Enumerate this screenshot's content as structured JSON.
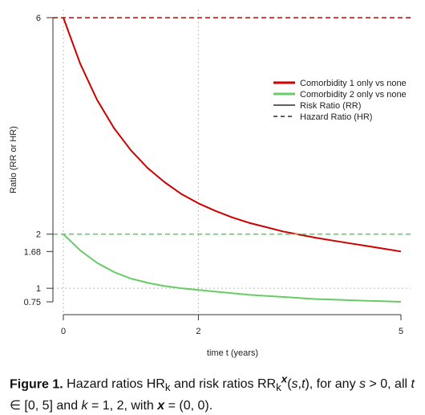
{
  "chart_data": {
    "type": "line",
    "title": "",
    "xlabel": "time t (years)",
    "ylabel": "Ratio (RR or HR)",
    "xlim": [
      0,
      5
    ],
    "ylim": [
      0.75,
      6
    ],
    "xticks": [
      0,
      2,
      5
    ],
    "xtick_labels": [
      "0",
      "2",
      "5"
    ],
    "yticks": [
      0.75,
      1,
      1.68,
      2,
      6
    ],
    "ytick_labels": [
      "0.75",
      "1",
      "1.68",
      "2",
      "6"
    ],
    "grid": false,
    "reference_lines": [
      {
        "axis": "x",
        "value": 0,
        "style": "dotted",
        "color": "#bbbbbb"
      },
      {
        "axis": "x",
        "value": 2,
        "style": "dotted",
        "color": "#bbbbbb"
      },
      {
        "axis": "y",
        "value": 1,
        "style": "dotted",
        "color": "#bbbbbb"
      }
    ],
    "legend": {
      "position": "top-right",
      "entries": [
        {
          "label": "Comorbidity 1 only vs none",
          "color": "#cc0000",
          "style": "thick-solid"
        },
        {
          "label": "Comorbidity 2 only vs none",
          "color": "#66cc66",
          "style": "thick-solid"
        },
        {
          "label": "Risk Ratio (RR)",
          "color": "#000000",
          "style": "solid"
        },
        {
          "label": "Hazard Ratio (HR)",
          "color": "#000000",
          "style": "dashed"
        }
      ]
    },
    "series": [
      {
        "name": "Comorbidity 1 only vs none",
        "measure": "Risk Ratio (RR)",
        "color": "#cc0000",
        "style": "solid",
        "x": [
          0,
          0.25,
          0.5,
          0.75,
          1,
          1.25,
          1.5,
          1.75,
          2,
          2.25,
          2.5,
          2.75,
          3,
          3.25,
          3.5,
          3.75,
          4,
          4.25,
          4.5,
          4.75,
          5
        ],
        "y": [
          6,
          5.15,
          4.48,
          3.96,
          3.55,
          3.22,
          2.96,
          2.74,
          2.57,
          2.43,
          2.31,
          2.21,
          2.13,
          2.05,
          1.99,
          1.93,
          1.88,
          1.83,
          1.78,
          1.73,
          1.68
        ]
      },
      {
        "name": "Comorbidity 1 only vs none",
        "measure": "Hazard Ratio (HR)",
        "color": "#cc0000",
        "style": "dashed",
        "x": [
          0,
          5
        ],
        "y": [
          6,
          6
        ]
      },
      {
        "name": "Comorbidity 2 only vs none",
        "measure": "Risk Ratio (RR)",
        "color": "#66cc66",
        "style": "solid",
        "x": [
          0,
          0.25,
          0.5,
          0.75,
          1,
          1.25,
          1.5,
          1.75,
          2,
          2.25,
          2.5,
          2.75,
          3,
          3.25,
          3.5,
          3.75,
          4,
          4.25,
          4.5,
          4.75,
          5
        ],
        "y": [
          2,
          1.7,
          1.47,
          1.3,
          1.18,
          1.1,
          1.04,
          1.0,
          0.97,
          0.94,
          0.91,
          0.88,
          0.86,
          0.84,
          0.82,
          0.8,
          0.79,
          0.78,
          0.77,
          0.76,
          0.75
        ]
      },
      {
        "name": "Comorbidity 2 only vs none",
        "measure": "Hazard Ratio (HR)",
        "color": "#66cc66",
        "style": "dashed",
        "x": [
          0,
          5
        ],
        "y": [
          2,
          2
        ]
      }
    ]
  },
  "caption": {
    "label": "Figure 1.",
    "text_html": "Hazard ratios HR<sub>k</sub> and risk ratios RR<sub>k</sub><sup><b><i>x</i></b></sup>(<i>s</i>,<i>t</i>), for any <i>s</i> &gt; 0, all <i>t</i> ∈ [0, 5] and <i>k</i> = 1, 2, with <b><i>x</i></b> = (0, 0)."
  }
}
